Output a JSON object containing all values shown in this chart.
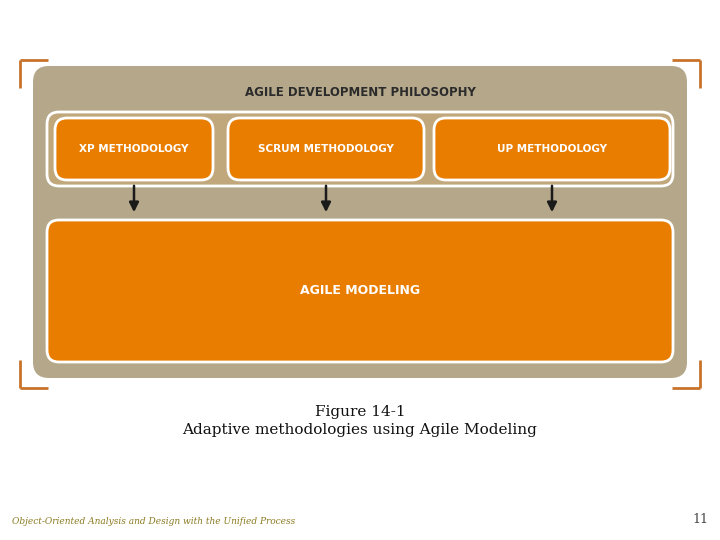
{
  "bg_color": "#ffffff",
  "bracket_color": "#c8732a",
  "main_box_color": "#b5a88a",
  "orange_color": "#e87d00",
  "inner_bg_color": "#c0a87c",
  "title_text": "AGILE DEVELOPMENT PHILOSOPHY",
  "title_color": "#2b2b2b",
  "box1_text": "XP METHODOLOGY",
  "box2_text": "SCRUM METHODOLOGY",
  "box3_text": "UP METHODOLOGY",
  "bottom_box_text": "AGILE MODELING",
  "fig_caption_line1": "Figure 14-1",
  "fig_caption_line2": "Adaptive methodologies using Agile Modeling",
  "footer_text": "Object-Oriented Analysis and Design with the Unified Process",
  "footer_color": "#8b7a20",
  "page_number": "11",
  "arrow_color": "#1a1a1a",
  "white": "#ffffff"
}
